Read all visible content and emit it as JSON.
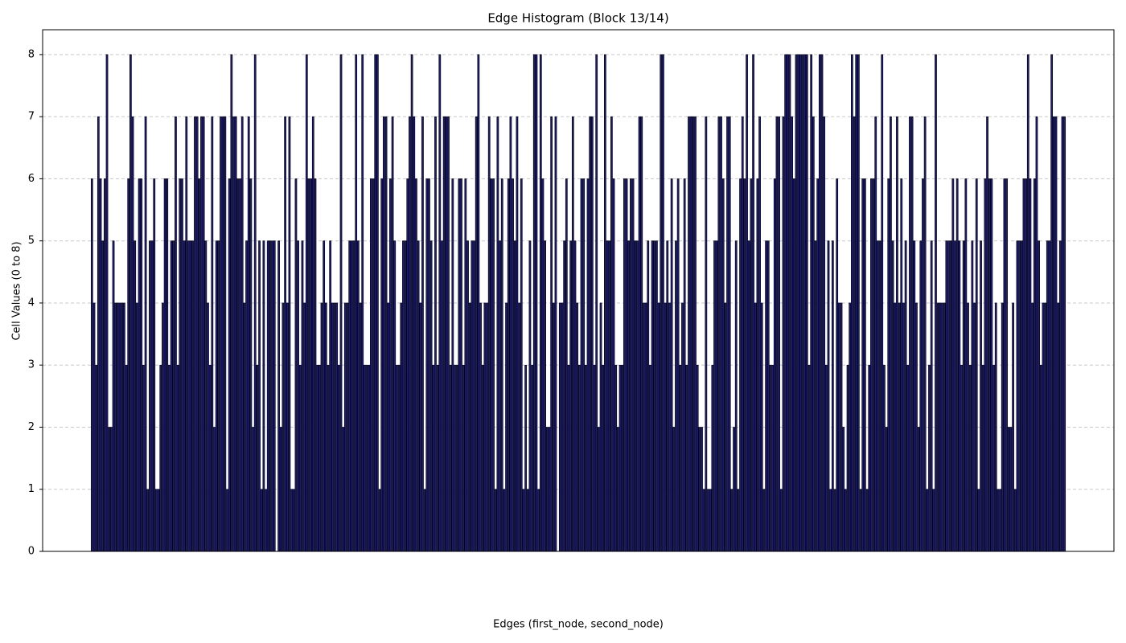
{
  "chart_data": {
    "type": "bar",
    "title": "Edge Histogram (Block 13/14)",
    "x_label": "Edges (first_node, second_node)",
    "y_label": "Cell Values (0 to 8)",
    "color": "#1c1c78",
    "edgecolor": "#000000",
    "grid": true,
    "ylim": [
      0,
      8.4
    ],
    "yticks": [
      0,
      1,
      2,
      3,
      4,
      5,
      6,
      7,
      8
    ],
    "values": [
      6,
      4,
      3,
      7,
      6,
      5,
      6,
      8,
      2,
      2,
      5,
      4,
      4,
      4,
      4,
      4,
      3,
      6,
      8,
      7,
      5,
      4,
      6,
      6,
      3,
      7,
      1,
      5,
      5,
      6,
      1,
      1,
      3,
      4,
      6,
      6,
      3,
      5,
      5,
      7,
      3,
      6,
      6,
      5,
      7,
      5,
      5,
      5,
      7,
      7,
      6,
      7,
      7,
      5,
      4,
      3,
      7,
      2,
      5,
      5,
      7,
      7,
      7,
      1,
      6,
      8,
      7,
      7,
      6,
      6,
      7,
      4,
      5,
      7,
      6,
      2,
      8,
      3,
      5,
      1,
      5,
      1,
      5,
      5,
      5,
      5,
      0,
      5,
      2,
      4,
      7,
      4,
      7,
      1,
      1,
      6,
      5,
      3,
      5,
      4,
      8,
      6,
      6,
      7,
      6,
      3,
      3,
      4,
      5,
      4,
      3,
      5,
      4,
      4,
      4,
      3,
      8,
      2,
      4,
      4,
      5,
      5,
      5,
      8,
      5,
      4,
      8,
      3,
      3,
      3,
      6,
      6,
      8,
      8,
      1,
      6,
      7,
      7,
      4,
      6,
      7,
      5,
      3,
      3,
      4,
      5,
      5,
      6,
      7,
      8,
      7,
      6,
      5,
      4,
      7,
      1,
      6,
      6,
      5,
      3,
      7,
      3,
      8,
      5,
      7,
      7,
      7,
      3,
      6,
      3,
      3,
      6,
      6,
      3,
      6,
      5,
      4,
      5,
      5,
      7,
      8,
      4,
      3,
      4,
      4,
      7,
      6,
      6,
      1,
      7,
      5,
      6,
      1,
      4,
      6,
      7,
      6,
      5,
      7,
      4,
      6,
      1,
      3,
      1,
      5,
      3,
      8,
      8,
      1,
      8,
      6,
      5,
      2,
      2,
      7,
      4,
      7,
      0,
      4,
      4,
      5,
      6,
      3,
      5,
      7,
      5,
      4,
      3,
      6,
      6,
      3,
      6,
      7,
      7,
      3,
      8,
      2,
      4,
      3,
      8,
      5,
      5,
      7,
      6,
      3,
      2,
      3,
      3,
      6,
      6,
      5,
      6,
      6,
      5,
      5,
      7,
      7,
      4,
      4,
      5,
      3,
      5,
      5,
      5,
      4,
      8,
      8,
      4,
      5,
      4,
      6,
      2,
      5,
      6,
      3,
      4,
      6,
      3,
      7,
      7,
      7,
      7,
      3,
      2,
      2,
      1,
      7,
      1,
      1,
      3,
      5,
      5,
      7,
      7,
      6,
      4,
      7,
      7,
      1,
      2,
      5,
      1,
      6,
      7,
      6,
      8,
      5,
      6,
      8,
      4,
      6,
      7,
      4,
      1,
      5,
      5,
      3,
      3,
      6,
      7,
      7,
      1,
      7,
      8,
      8,
      8,
      7,
      6,
      8,
      8,
      8,
      8,
      8,
      8,
      3,
      8,
      7,
      5,
      6,
      8,
      8,
      7,
      3,
      5,
      1,
      5,
      1,
      6,
      4,
      4,
      2,
      1,
      3,
      4,
      8,
      7,
      8,
      8,
      1,
      6,
      6,
      1,
      3,
      6,
      6,
      7,
      5,
      5,
      8,
      3,
      2,
      6,
      7,
      5,
      4,
      7,
      4,
      6,
      4,
      5,
      3,
      7,
      7,
      5,
      4,
      2,
      5,
      6,
      7,
      1,
      3,
      5,
      1,
      8,
      4,
      4,
      4,
      4,
      5,
      5,
      5,
      6,
      5,
      6,
      5,
      3,
      5,
      6,
      4,
      3,
      5,
      4,
      6,
      1,
      5,
      3,
      6,
      7,
      6,
      6,
      3,
      4,
      1,
      1,
      4,
      6,
      6,
      2,
      2,
      4,
      1,
      5,
      5,
      5,
      6,
      6,
      8,
      6,
      4,
      6,
      7,
      5,
      3,
      4,
      4,
      5,
      5,
      8,
      7,
      7,
      4,
      5,
      7,
      7
    ]
  }
}
